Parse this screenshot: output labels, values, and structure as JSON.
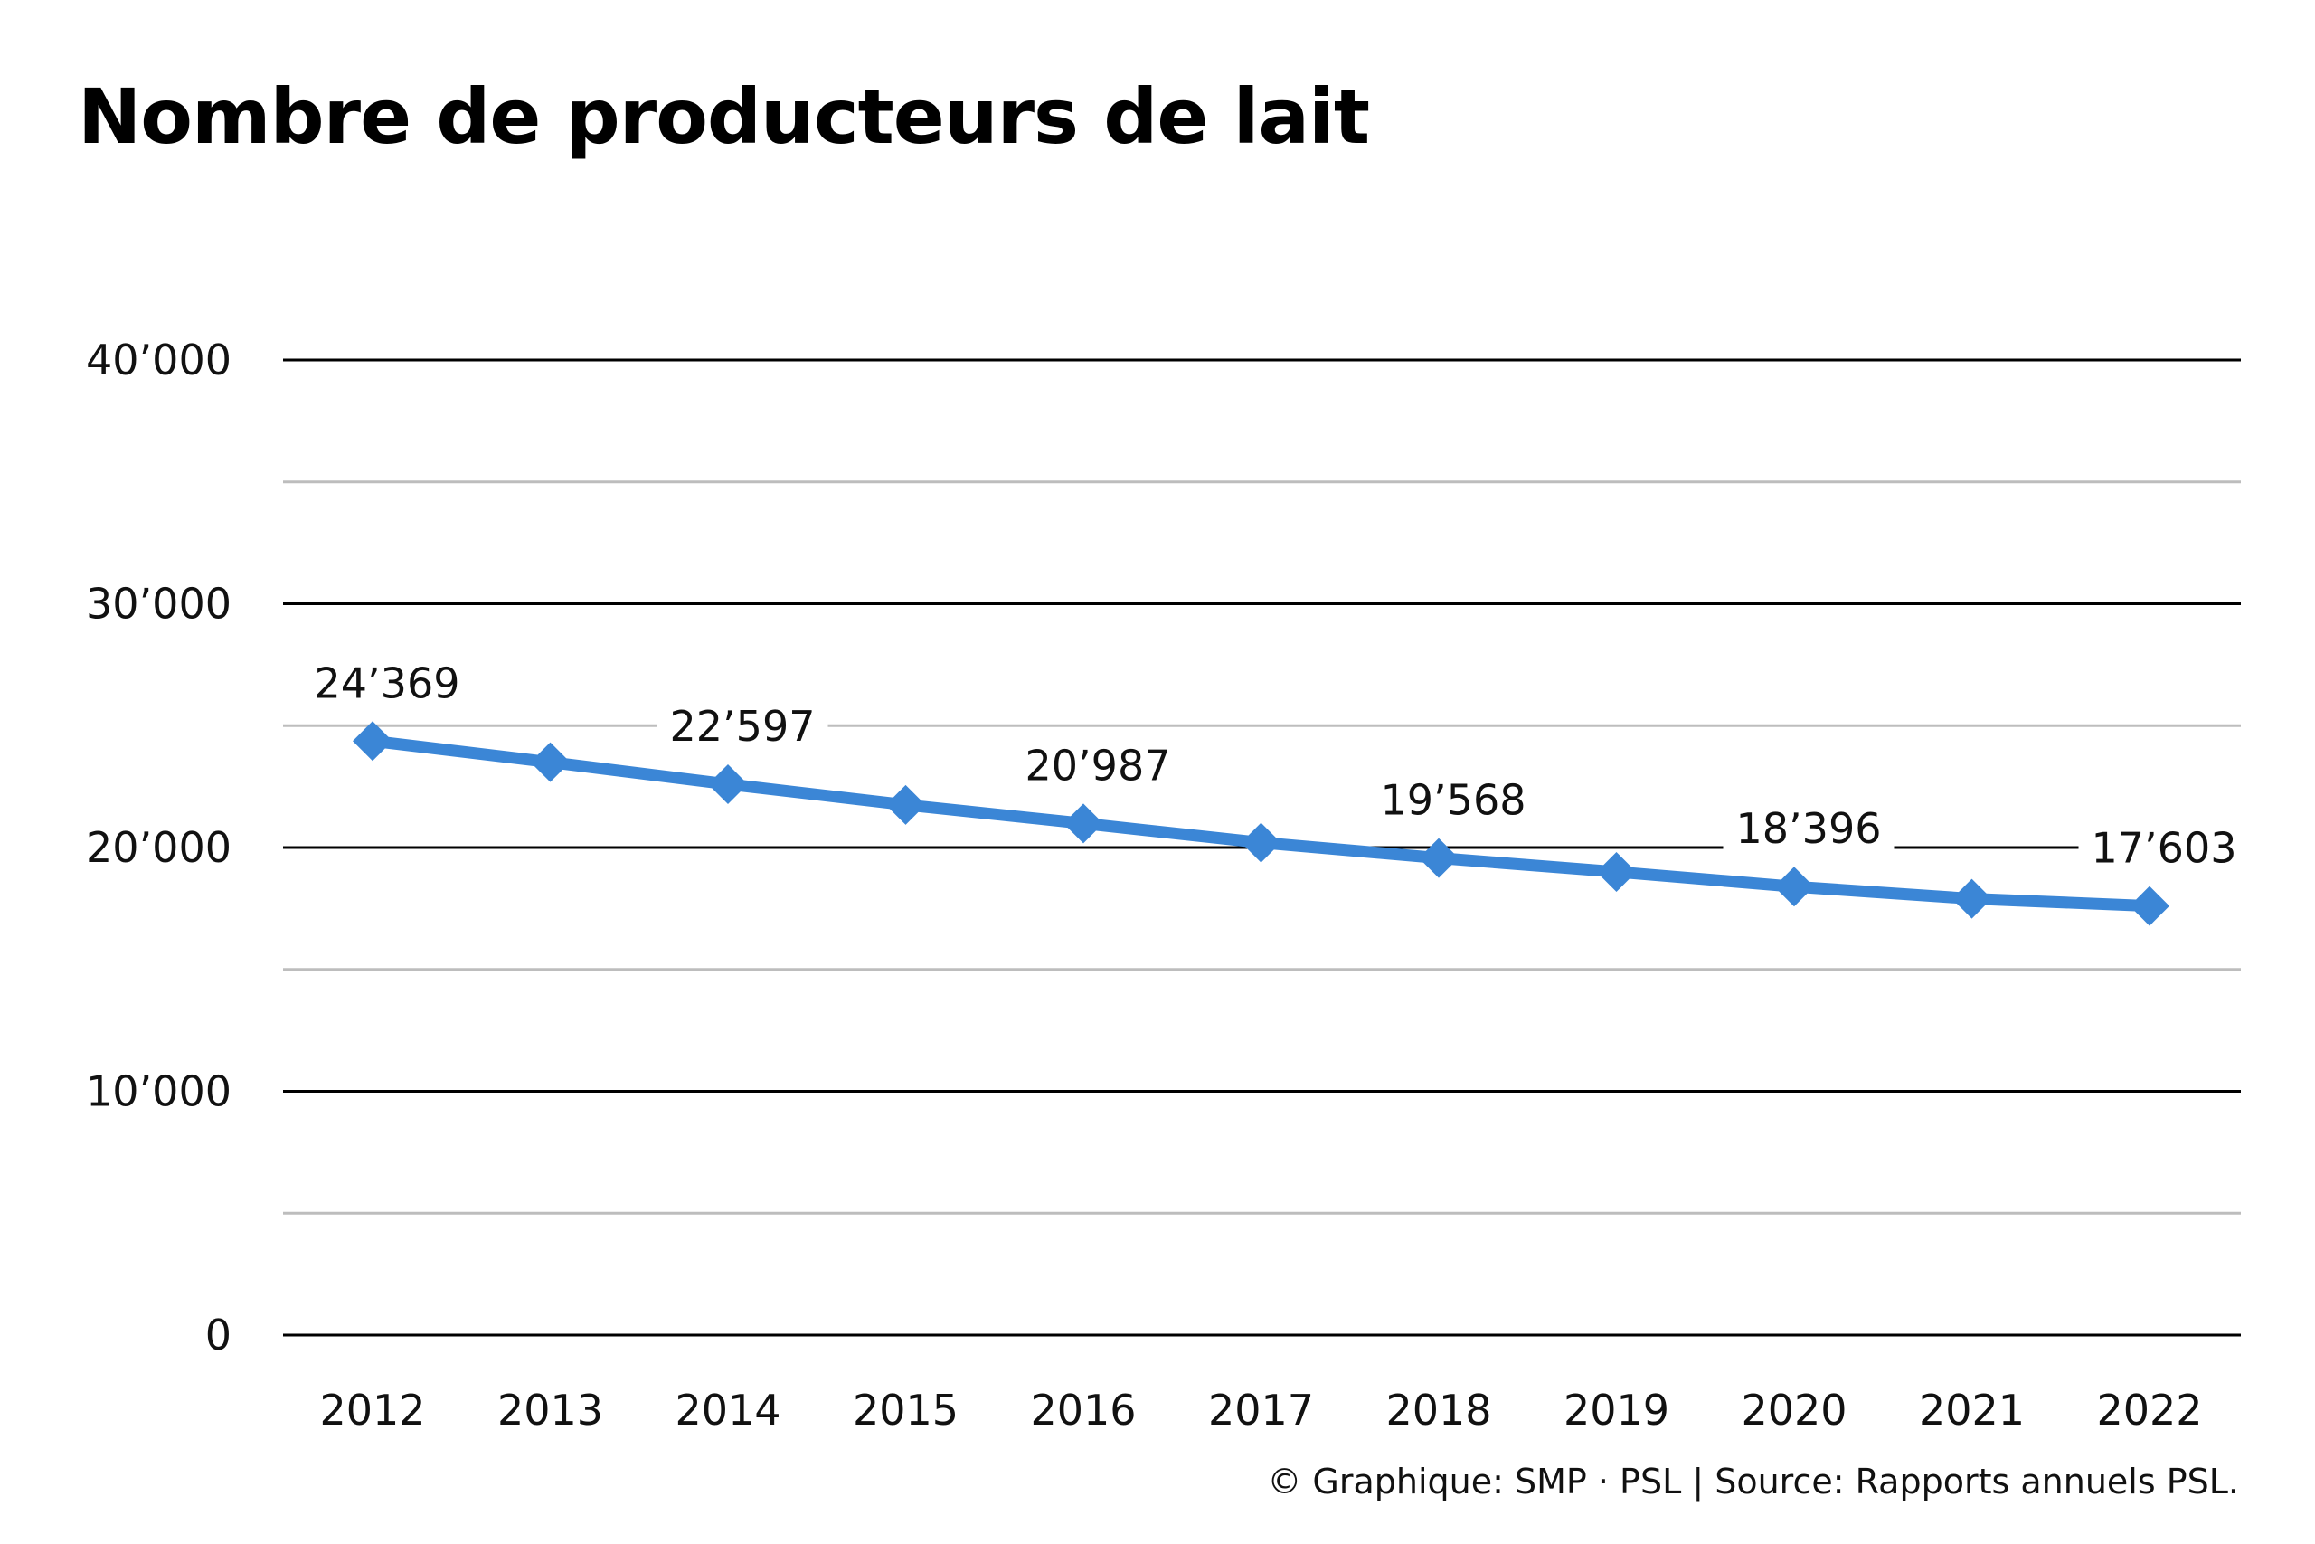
{
  "title": "Nombre de producteurs de lait",
  "footer": "© Graphique: SMP · PSL | Source: Rapports annuels PSL.",
  "colors": {
    "line": "#3b86d6",
    "major_grid": "#000000",
    "minor_grid": "#bdbdbd"
  },
  "chart_data": {
    "type": "line",
    "title": "Nombre de producteurs de lait",
    "xlabel": "",
    "ylabel": "",
    "categories": [
      "2012",
      "2013",
      "2014",
      "2015",
      "2016",
      "2017",
      "2018",
      "2019",
      "2020",
      "2021",
      "2022"
    ],
    "series": [
      {
        "values": [
          24369,
          23500,
          22597,
          21750,
          20987,
          20200,
          19568,
          19000,
          18396,
          17900,
          17603
        ],
        "marker": "diamond"
      }
    ],
    "data_labels": [
      {
        "index": 0,
        "text": "24’369"
      },
      {
        "index": 2,
        "text": "22’597"
      },
      {
        "index": 4,
        "text": "20’987"
      },
      {
        "index": 6,
        "text": "19’568"
      },
      {
        "index": 8,
        "text": "18’396"
      },
      {
        "index": 10,
        "text": "17’603"
      }
    ],
    "ylim": [
      0,
      40000
    ],
    "y_major_ticks": [
      0,
      10000,
      20000,
      30000,
      40000
    ],
    "y_tick_labels": [
      "0",
      "10’000",
      "20’000",
      "30’000",
      "40’000"
    ],
    "y_minor_ticks": [
      5000,
      15000,
      25000,
      35000
    ],
    "grid": true,
    "legend": "none"
  }
}
